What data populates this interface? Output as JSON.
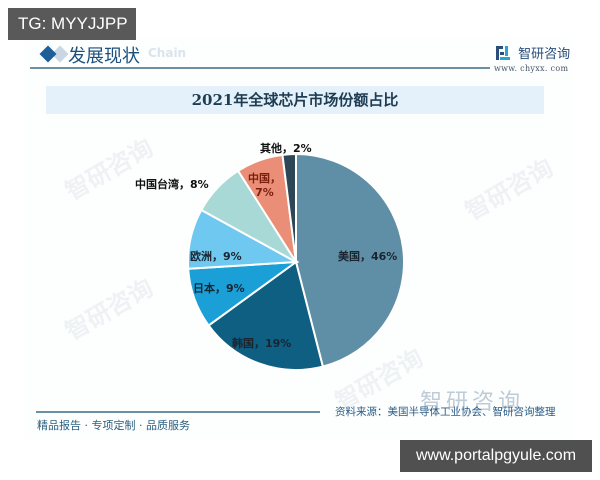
{
  "overlay": {
    "tg_badge": "TG: MYYJJPP",
    "url_badge": "www.portalpgyule.com"
  },
  "header": {
    "section_title": "发展现状",
    "section_subtitle": "Chain",
    "logo_text": "智研咨询",
    "logo_url": "www. chyxx. com"
  },
  "footer": {
    "tagline": "精品报告 · 专项定制 · 品质服务",
    "source": "资料来源：美国半导体工业协会、智研咨询整理",
    "watermark_logo": "智研咨询"
  },
  "watermarks": [
    "智研咨询",
    "智研咨询",
    "智研咨询",
    "智研咨询"
  ],
  "colors": {
    "usa": "#5f8fa6",
    "korea": "#0e5f82",
    "japan": "#1a9fd6",
    "europe": "#6fc8ef",
    "taiwan": "#a9d9d6",
    "china": "#ea8e77",
    "other": "#2d4756"
  },
  "chart_data": {
    "type": "pie",
    "title": "2021年全球芯片市场份额占比",
    "categories": [
      "美国",
      "韩国",
      "日本",
      "欧洲",
      "中国台湾",
      "中国",
      "其他"
    ],
    "values": [
      46,
      19,
      9,
      9,
      8,
      7,
      2
    ],
    "unit": "%",
    "labels": [
      "美国，46%",
      "韩国，19%",
      "日本，9%",
      "欧洲，9%",
      "中国台湾，8%",
      "中国，7%",
      "其他，2%"
    ],
    "start_angle": "12 o'clock, clockwise",
    "legend": "none (data labels)",
    "source": "资料来源：美国半导体工业协会、智研咨询整理"
  }
}
